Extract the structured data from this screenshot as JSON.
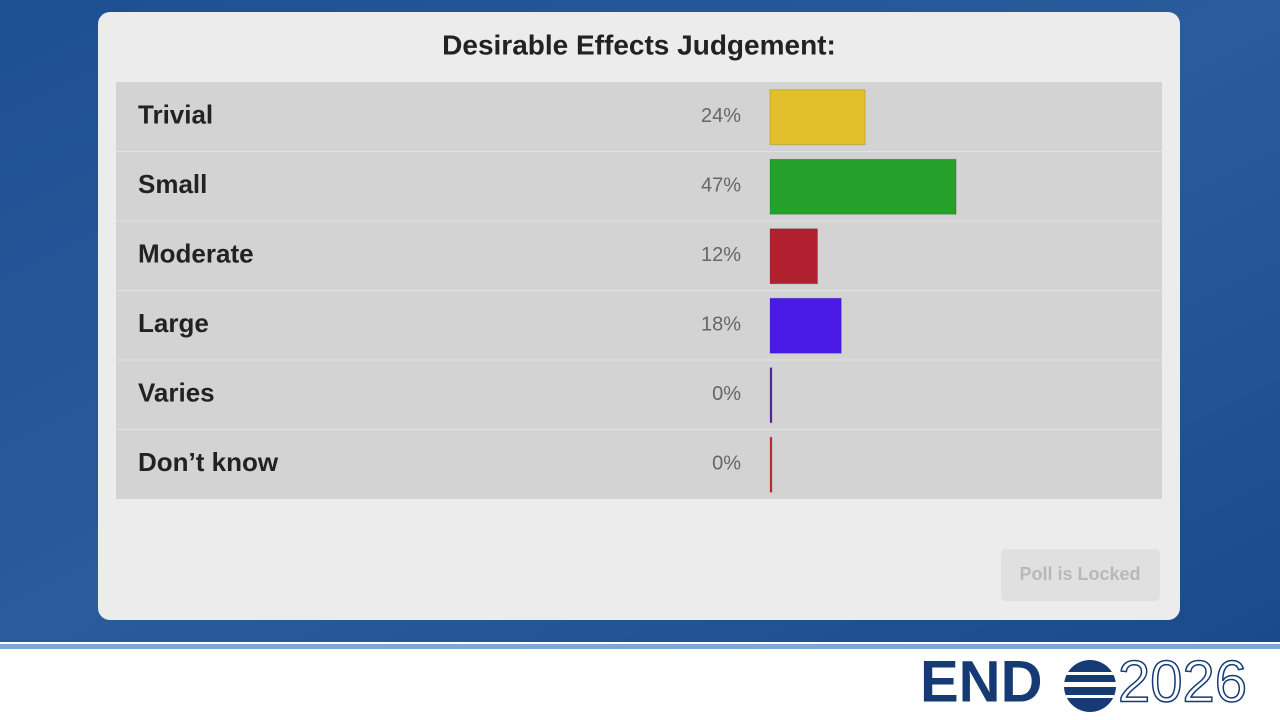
{
  "chart_data": {
    "type": "bar",
    "title": "Desirable Effects Judgement:",
    "categories": [
      "Trivial",
      "Small",
      "Moderate",
      "Large",
      "Varies",
      "Don’t know"
    ],
    "values": [
      24,
      47,
      12,
      18,
      0,
      0
    ],
    "value_labels": [
      "24%",
      "47%",
      "12%",
      "18%",
      "0%",
      "0%"
    ],
    "colors": [
      "#e3bf2c",
      "#25a12b",
      "#b0202f",
      "#4a1be6",
      "#5a2aa0",
      "#c43232"
    ]
  },
  "button": "Poll is Locked",
  "logo": {
    "brand": "END",
    "year": "2026"
  }
}
